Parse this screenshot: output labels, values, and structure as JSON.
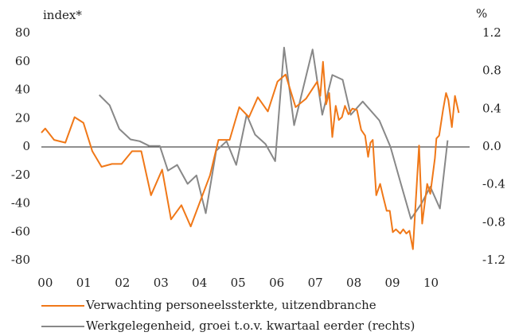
{
  "chart_data": {
    "type": "line",
    "y_label": "index*",
    "y2_label": "%",
    "xlim": [
      -0.1,
      11.0
    ],
    "xticks": [
      {
        "value": 0,
        "label": "00"
      },
      {
        "value": 1,
        "label": "01"
      },
      {
        "value": 2,
        "label": "02"
      },
      {
        "value": 3,
        "label": "03"
      },
      {
        "value": 4,
        "label": "04"
      },
      {
        "value": 5,
        "label": "05"
      },
      {
        "value": 6,
        "label": "06"
      },
      {
        "value": 7,
        "label": "07"
      },
      {
        "value": 8,
        "label": "08"
      },
      {
        "value": 9,
        "label": "09"
      },
      10
    ],
    "ylim": [
      -80,
      80
    ],
    "yticks": [
      -80,
      -60,
      -40,
      -20,
      0,
      20,
      40,
      60,
      80
    ],
    "y2lim": [
      -1.2,
      1.2
    ],
    "y2ticks": [
      -1.2,
      -0.8,
      -0.4,
      {
        "value": 0,
        "label": "0.0"
      },
      0.4,
      0.8,
      1.2
    ],
    "series": [
      {
        "name": "Verwachting personeelssterkte, uitzendbranche",
        "color": "#f07818",
        "axis": "y",
        "x": [
          -0.1,
          0.0,
          0.23,
          0.52,
          0.76,
          0.99,
          1.22,
          1.46,
          1.73,
          1.98,
          2.25,
          2.49,
          2.74,
          3.03,
          3.26,
          3.53,
          3.77,
          4.02,
          4.27,
          4.49,
          4.78,
          5.03,
          5.28,
          5.51,
          5.77,
          6.02,
          6.23,
          6.49,
          6.76,
          7.05,
          7.13,
          7.2,
          7.28,
          7.36,
          7.44,
          7.53,
          7.61,
          7.69,
          7.77,
          7.86,
          7.96,
          8.08,
          8.19,
          8.29,
          8.37,
          8.43,
          8.49,
          8.58,
          8.68,
          8.76,
          8.85,
          8.93,
          9.01,
          9.09,
          9.2,
          9.28,
          9.36,
          9.44,
          9.53,
          9.69,
          9.77,
          9.9,
          9.98,
          10.1,
          10.14,
          10.21,
          10.31,
          10.39,
          10.45,
          10.54,
          10.62,
          10.72
        ],
        "values": [
          10,
          13,
          5,
          3,
          21,
          17,
          -3,
          -14,
          -12,
          -12,
          -3,
          -3,
          -34,
          -16,
          -51,
          -41,
          -56,
          -38,
          -20,
          5,
          5,
          28,
          21,
          35,
          25,
          46,
          51,
          28,
          34,
          46,
          36,
          60,
          30,
          38,
          7,
          29,
          19,
          21,
          29,
          23,
          27,
          26,
          12,
          8,
          -7,
          3,
          5,
          -34,
          -26,
          -35,
          -45,
          -45,
          -60,
          -58,
          -61,
          -58,
          -61,
          -59,
          -72,
          1,
          -54,
          -26,
          -33,
          -8,
          6,
          8,
          26,
          38,
          33,
          14,
          36,
          24
        ]
      },
      {
        "name": "Werkgelegenheid, groei t.o.v. kwartaal eerder (rechts)",
        "color": "#888888",
        "axis": "y2",
        "x": [
          1.4,
          1.67,
          1.92,
          2.21,
          2.45,
          2.7,
          2.97,
          3.18,
          3.42,
          3.69,
          3.92,
          4.16,
          4.43,
          4.7,
          4.95,
          5.22,
          5.44,
          5.71,
          5.96,
          6.19,
          6.45,
          6.93,
          7.18,
          7.44,
          7.71,
          7.92,
          8.23,
          8.66,
          8.95,
          9.22,
          9.48,
          9.75,
          9.98,
          10.23,
          10.43
        ],
        "values": [
          0.55,
          0.44,
          0.19,
          0.08,
          0.06,
          0.01,
          0.01,
          -0.25,
          -0.19,
          -0.39,
          -0.3,
          -0.7,
          -0.04,
          0.06,
          -0.19,
          0.34,
          0.13,
          0.03,
          -0.15,
          1.05,
          0.23,
          1.03,
          0.34,
          0.76,
          0.71,
          0.34,
          0.48,
          0.28,
          0.0,
          -0.39,
          -0.76,
          -0.6,
          -0.42,
          -0.65,
          0.07
        ]
      }
    ]
  }
}
